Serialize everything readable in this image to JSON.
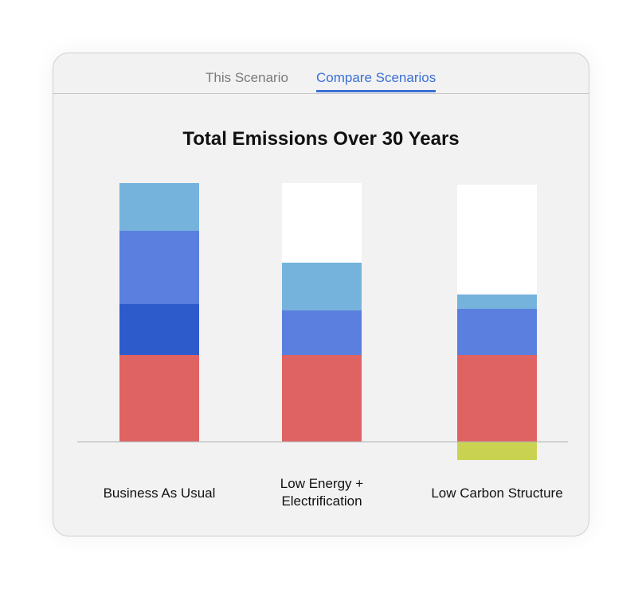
{
  "tabs": {
    "this_scenario": "This Scenario",
    "compare_scenarios": "Compare Scenarios",
    "active": "Compare Scenarios"
  },
  "chart_data": {
    "type": "bar",
    "stacked": true,
    "title": "Total Emissions Over 30 Years",
    "categories": [
      "Business As Usual",
      "Low Energy +\nElectrification",
      "Low Carbon Structure"
    ],
    "grid": false,
    "legend": "none",
    "series": [
      {
        "color": "#e06363",
        "values": [
          109,
          109,
          109
        ]
      },
      {
        "color": "#2e5bcc",
        "values": [
          64,
          0,
          0
        ]
      },
      {
        "color": "#5a7fde",
        "values": [
          92,
          56,
          58
        ]
      },
      {
        "color": "#76b3dc",
        "values": [
          60,
          60,
          18
        ]
      },
      {
        "color": "#ffffff",
        "values": [
          0,
          100,
          138
        ]
      },
      {
        "color": "#c9d351",
        "values": [
          0,
          0,
          -23
        ]
      }
    ],
    "ylim": [
      -23,
      325
    ]
  }
}
